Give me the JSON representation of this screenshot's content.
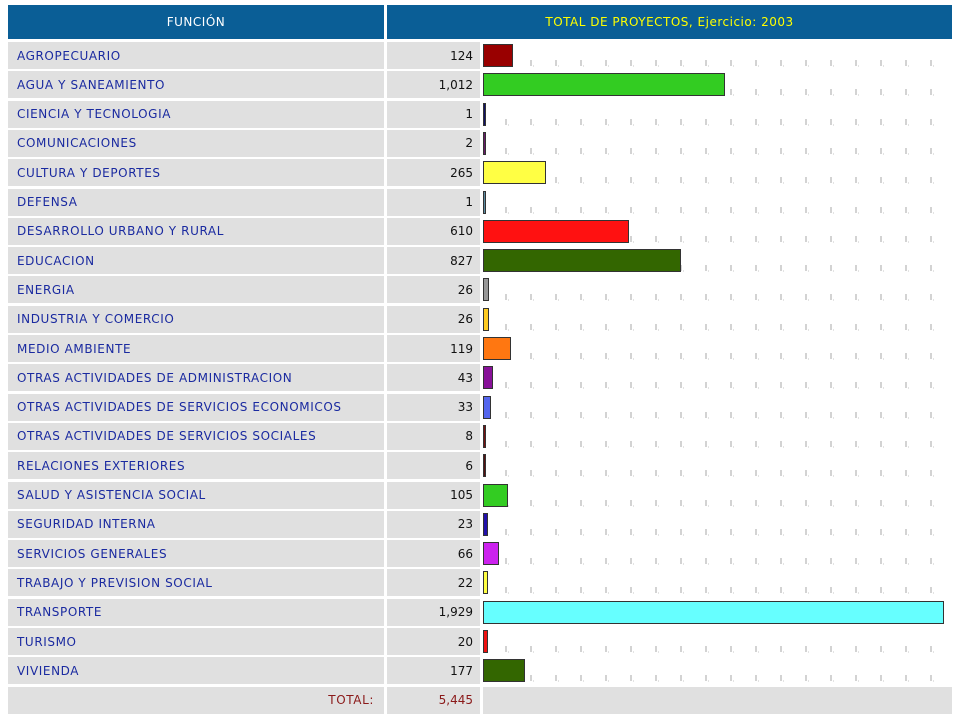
{
  "header": {
    "funcion_label": "FUNCIÓN",
    "total_label": "TOTAL DE PROYECTOS, Ejercicio: 2003"
  },
  "chart_data": {
    "type": "bar",
    "orientation": "horizontal",
    "xlim": [
      0,
      1929
    ],
    "categories": [
      "AGROPECUARIO",
      "AGUA Y SANEAMIENTO",
      "CIENCIA Y TECNOLOGIA",
      "COMUNICACIONES",
      "CULTURA Y DEPORTES",
      "DEFENSA",
      "DESARROLLO URBANO Y RURAL",
      "EDUCACION",
      "ENERGIA",
      "INDUSTRIA Y COMERCIO",
      "MEDIO AMBIENTE",
      "OTRAS ACTIVIDADES DE ADMINISTRACION",
      "OTRAS ACTIVIDADES DE SERVICIOS ECONOMICOS",
      "OTRAS ACTIVIDADES DE SERVICIOS SOCIALES",
      "RELACIONES EXTERIORES",
      "SALUD Y ASISTENCIA SOCIAL",
      "SEGURIDAD INTERNA",
      "SERVICIOS GENERALES",
      "TRABAJO Y PREVISION SOCIAL",
      "TRANSPORTE",
      "TURISMO",
      "VIVIENDA"
    ],
    "values": [
      124,
      1012,
      1,
      2,
      265,
      1,
      610,
      827,
      26,
      26,
      119,
      43,
      33,
      8,
      6,
      105,
      23,
      66,
      22,
      1929,
      20,
      177
    ],
    "value_labels": [
      "124",
      "1,012",
      "1",
      "2",
      "265",
      "1",
      "610",
      "827",
      "26",
      "26",
      "119",
      "43",
      "33",
      "8",
      "6",
      "105",
      "23",
      "66",
      "22",
      "1,929",
      "20",
      "177"
    ],
    "colors": [
      "#990000",
      "#33cc22",
      "#111166",
      "#6a1a6a",
      "#ffff44",
      "#5a8aa0",
      "#ff1111",
      "#336600",
      "#999999",
      "#ffcc22",
      "#ff7711",
      "#881199",
      "#5566ee",
      "#771111",
      "#551111",
      "#33cc22",
      "#2211aa",
      "#cc22ee",
      "#ffff44",
      "#66ffff",
      "#ee1111",
      "#336600"
    ],
    "total_label": "TOTAL:",
    "total_value": "5,445"
  }
}
